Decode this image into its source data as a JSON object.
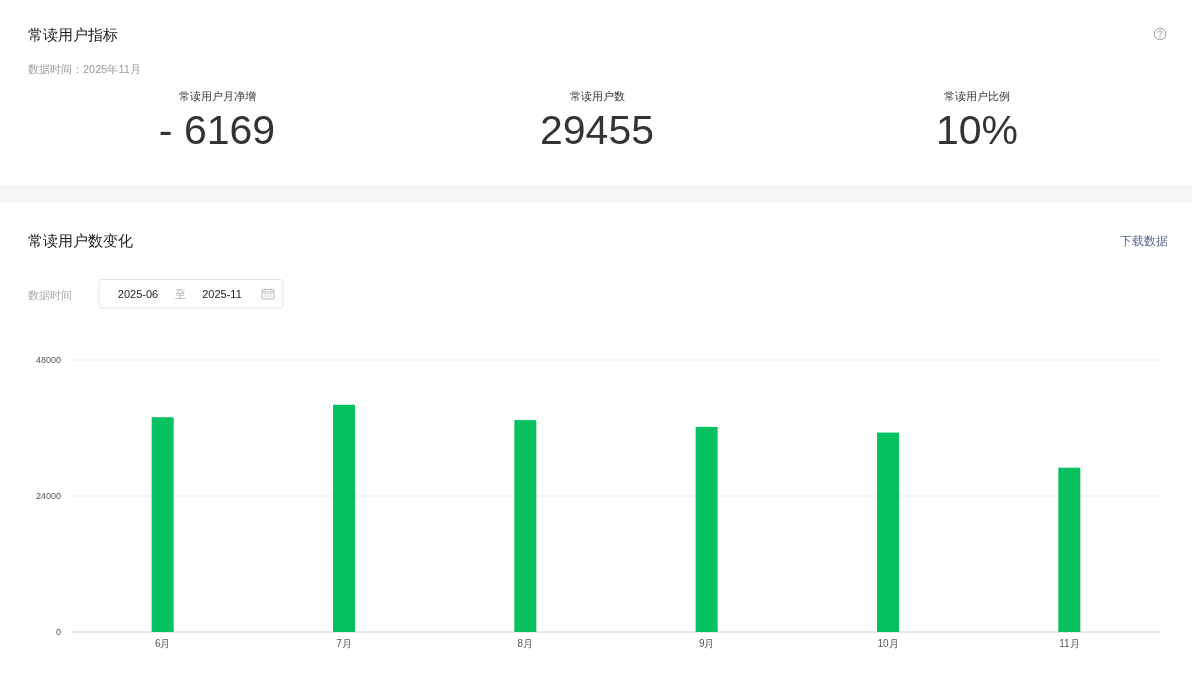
{
  "chart_data": [
    {
      "type": "other",
      "title": "常读用户指标",
      "subtitle": "数据时间：2025年11月",
      "annotations": [
        "常读用户月净增",
        "- 6169",
        "常读用户数",
        "29455",
        "常读用户比例",
        "10%"
      ]
    },
    {
      "type": "bar",
      "title": "常读用户数变化",
      "annotations": [
        "下载数据",
        "数据时间",
        "2025-06",
        "至",
        "2025-11"
      ],
      "categories": [
        "6月",
        "7月",
        "8月",
        "9月",
        "10月",
        "11月"
      ],
      "values": [
        37900,
        40100,
        37400,
        36200,
        35200,
        29000
      ],
      "color": "#07c160",
      "ylim": [
        0,
        48000
      ],
      "yticks": [
        0,
        24000,
        48000
      ],
      "grid": "y"
    }
  ]
}
